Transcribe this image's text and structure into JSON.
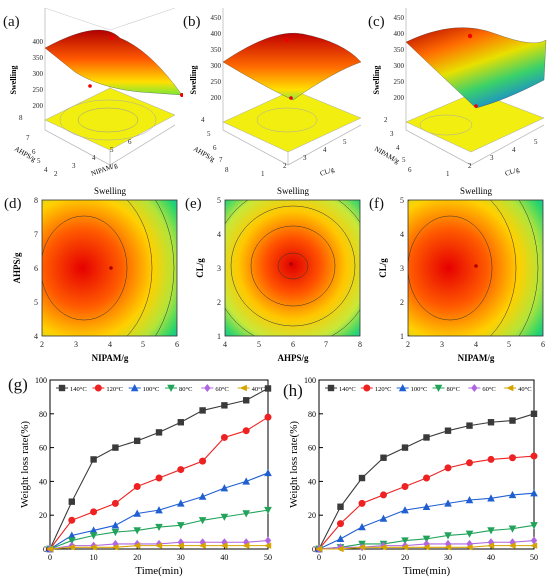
{
  "panels_3d": [
    {
      "label": "(a)",
      "zlabel": "Swelling",
      "xlabel": "NIPAM/g",
      "ylabel": "AHPS/g",
      "zticks": [
        "400",
        "350",
        "300",
        "250",
        "200"
      ],
      "xticks": [
        "2",
        "3",
        "4",
        "5",
        "6"
      ],
      "yticks": [
        "4",
        "5",
        "6",
        "7",
        "8"
      ]
    },
    {
      "label": "(b)",
      "zlabel": "Swelling",
      "xlabel": "CL/g",
      "ylabel": "AHPS/g",
      "zticks": [
        "450",
        "400",
        "350",
        "300",
        "250",
        "200"
      ],
      "xticks": [
        "1",
        "2",
        "3",
        "4",
        "5"
      ],
      "yticks": [
        "4",
        "5",
        "6",
        "7",
        "8"
      ]
    },
    {
      "label": "(c)",
      "zlabel": "Swelling",
      "xlabel": "CL/g",
      "ylabel": "NIPAM/g",
      "zticks": [
        "450",
        "400",
        "350",
        "300",
        "250",
        "200"
      ],
      "xticks": [
        "1",
        "2",
        "3",
        "4",
        "5"
      ],
      "yticks": [
        "2",
        "3",
        "4",
        "5",
        "6"
      ]
    }
  ],
  "panels_contour": [
    {
      "label": "(d)",
      "title": "Swelling",
      "xlabel": "NIPAM/g",
      "ylabel": "AHPS/g",
      "xticks": [
        "2",
        "3",
        "4",
        "5",
        "6"
      ],
      "yticks": [
        "8",
        "7",
        "6",
        "5",
        "4"
      ]
    },
    {
      "label": "(e)",
      "title": "Swelling",
      "xlabel": "AHPS/g",
      "ylabel": "CL/g",
      "xticks": [
        "4",
        "5",
        "6",
        "7",
        "8"
      ],
      "yticks": [
        "5",
        "4",
        "3",
        "2",
        "1"
      ]
    },
    {
      "label": "(f)",
      "title": "Swelling",
      "xlabel": "NIPAM/g",
      "ylabel": "CL/g",
      "xticks": [
        "2",
        "3",
        "4",
        "5",
        "6"
      ],
      "yticks": [
        "5",
        "4",
        "3",
        "2",
        "1"
      ]
    }
  ],
  "chart_data": [
    {
      "type": "line",
      "label": "(g)",
      "xlabel": "Time(min)",
      "ylabel": "Weight loss rate(%)",
      "xlim": [
        0,
        50
      ],
      "ylim": [
        0,
        100
      ],
      "xticks": [
        "0",
        "10",
        "20",
        "30",
        "40",
        "50"
      ],
      "yticks": [
        "0",
        "20",
        "40",
        "60",
        "80",
        "100"
      ],
      "x": [
        0,
        5,
        10,
        15,
        20,
        25,
        30,
        35,
        40,
        45,
        50
      ],
      "series": [
        {
          "name": "140°C",
          "color": "#3a3a3a",
          "marker": "square",
          "values": [
            0,
            28,
            53,
            60,
            64,
            69,
            75,
            82,
            85,
            88,
            95
          ]
        },
        {
          "name": "120°C",
          "color": "#ee2222",
          "marker": "circle",
          "values": [
            0,
            17,
            22,
            27,
            37,
            42,
            47,
            52,
            66,
            70,
            78
          ]
        },
        {
          "name": "100°C",
          "color": "#1f5fd1",
          "marker": "triangle-up",
          "values": [
            0,
            8,
            11,
            14,
            21,
            23,
            27,
            31,
            36,
            40,
            45
          ]
        },
        {
          "name": "80°C",
          "color": "#22a35a",
          "marker": "triangle-down",
          "values": [
            0,
            5,
            8,
            10,
            11,
            13,
            14,
            17,
            19,
            21,
            23
          ]
        },
        {
          "name": "60°C",
          "color": "#b066e0",
          "marker": "diamond",
          "values": [
            0,
            2,
            2,
            3,
            3,
            3,
            4,
            4,
            4,
            4,
            5
          ]
        },
        {
          "name": "40°C",
          "color": "#d6a400",
          "marker": "triangle-left",
          "values": [
            0,
            1,
            1,
            1,
            2,
            2,
            2,
            2,
            2,
            2,
            2
          ]
        }
      ]
    },
    {
      "type": "line",
      "label": "(h)",
      "xlabel": "Time(min)",
      "ylabel": "Weight loss rate(%)",
      "xlim": [
        0,
        50
      ],
      "ylim": [
        0,
        100
      ],
      "xticks": [
        "0",
        "10",
        "20",
        "30",
        "40",
        "50"
      ],
      "yticks": [
        "0",
        "20",
        "40",
        "60",
        "80",
        "100"
      ],
      "x": [
        0,
        5,
        10,
        15,
        20,
        25,
        30,
        35,
        40,
        45,
        50
      ],
      "series": [
        {
          "name": "140°C",
          "color": "#3a3a3a",
          "marker": "square",
          "values": [
            0,
            25,
            42,
            54,
            60,
            66,
            70,
            73,
            75,
            76,
            80
          ]
        },
        {
          "name": "120°C",
          "color": "#ee2222",
          "marker": "circle",
          "values": [
            0,
            15,
            27,
            32,
            37,
            42,
            48,
            51,
            53,
            54,
            55
          ]
        },
        {
          "name": "100°C",
          "color": "#1f5fd1",
          "marker": "triangle-up",
          "values": [
            0,
            6,
            13,
            18,
            23,
            25,
            27,
            29,
            30,
            32,
            33
          ]
        },
        {
          "name": "80°C",
          "color": "#22a35a",
          "marker": "triangle-down",
          "values": [
            0,
            1,
            3,
            3,
            5,
            6,
            8,
            9,
            11,
            12,
            14
          ]
        },
        {
          "name": "60°C",
          "color": "#b066e0",
          "marker": "diamond",
          "values": [
            0,
            1,
            1,
            2,
            2,
            3,
            3,
            3,
            4,
            4,
            5
          ]
        },
        {
          "name": "40°C",
          "color": "#d6a400",
          "marker": "triangle-left",
          "values": [
            0,
            0,
            1,
            1,
            1,
            1,
            1,
            1,
            2,
            2,
            2
          ]
        }
      ]
    }
  ]
}
